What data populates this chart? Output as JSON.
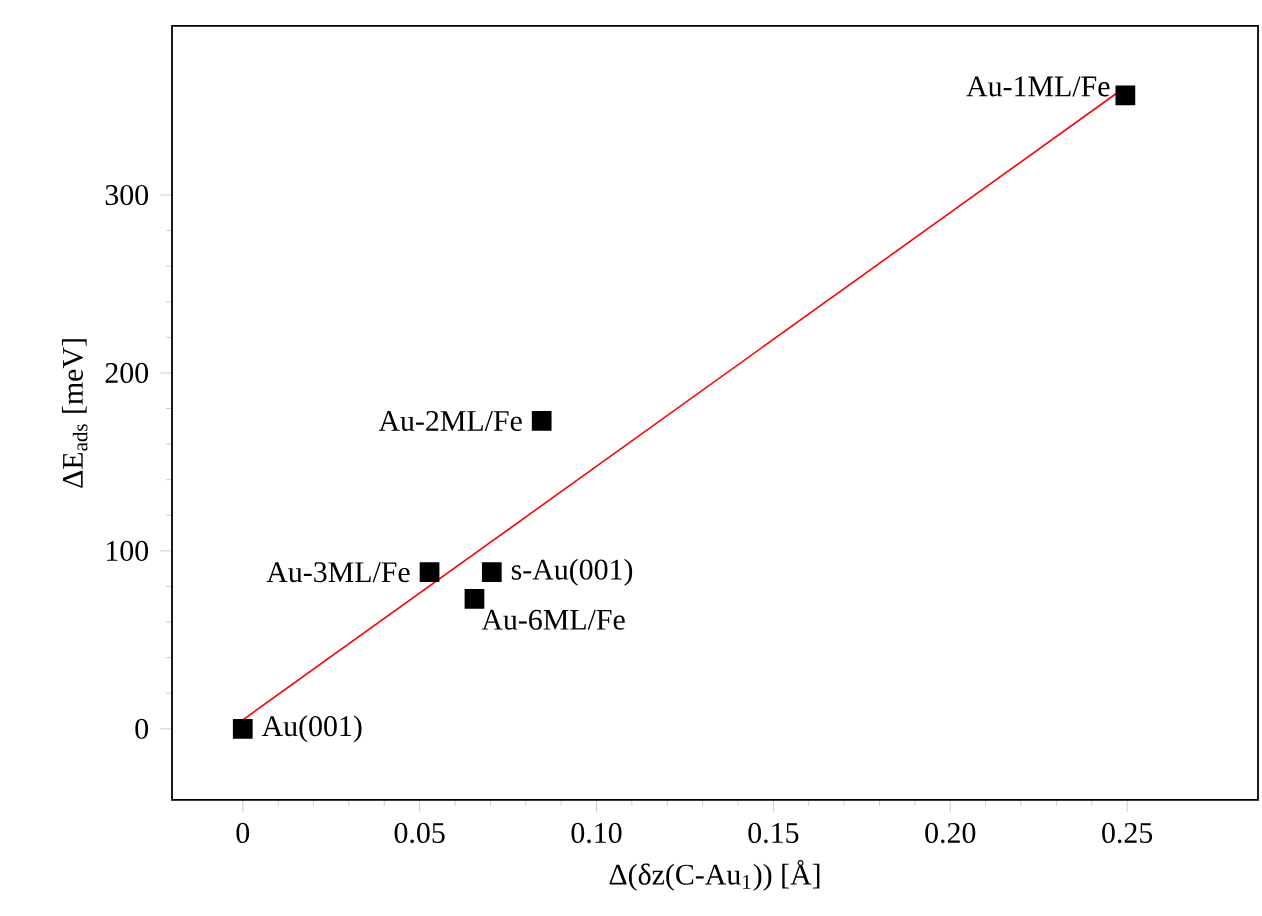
{
  "chart_data": {
    "type": "scatter",
    "xlabel": "Δ(δz(C-Au$_{1}$)) [Å]",
    "ylabel": "ΔE$_{ads}$ [meV]",
    "xlim": [
      -0.02,
      0.287
    ],
    "ylim": [
      -40,
      395
    ],
    "xticks": [
      0,
      0.05,
      {
        "value": 0.1,
        "label": "0.10"
      },
      0.15,
      {
        "value": 0.2,
        "label": "0.20"
      },
      0.25
    ],
    "yticks": [
      0,
      100,
      200,
      300
    ],
    "marker": "square",
    "series": [
      {
        "color": "#000000",
        "x": [
          0,
          0.0528,
          0.0704,
          0.0655,
          0.0845,
          0.2495
        ],
        "values": [
          0,
          88,
          88,
          73,
          173,
          356
        ]
      },
      {
        "type": "line",
        "color": "#ff0000",
        "marker": "none",
        "line_style": "solid",
        "x": [
          0,
          0.249
        ],
        "values": [
          5,
          360
        ]
      }
    ],
    "annotations": [
      {
        "text": "Au(001)",
        "x": 0,
        "y": 0
      },
      {
        "text": "Au-3ML/Fe",
        "x": 0.0528,
        "y": 88
      },
      {
        "text": "s-Au(001)",
        "x": 0.0704,
        "y": 88
      },
      {
        "text": "Au-6ML/Fe",
        "x": 0.0655,
        "y": 73
      },
      {
        "text": "Au-2ML/Fe",
        "x": 0.0845,
        "y": 173
      },
      {
        "text": "Au-1ML/Fe",
        "x": 0.2495,
        "y": 356
      }
    ]
  }
}
